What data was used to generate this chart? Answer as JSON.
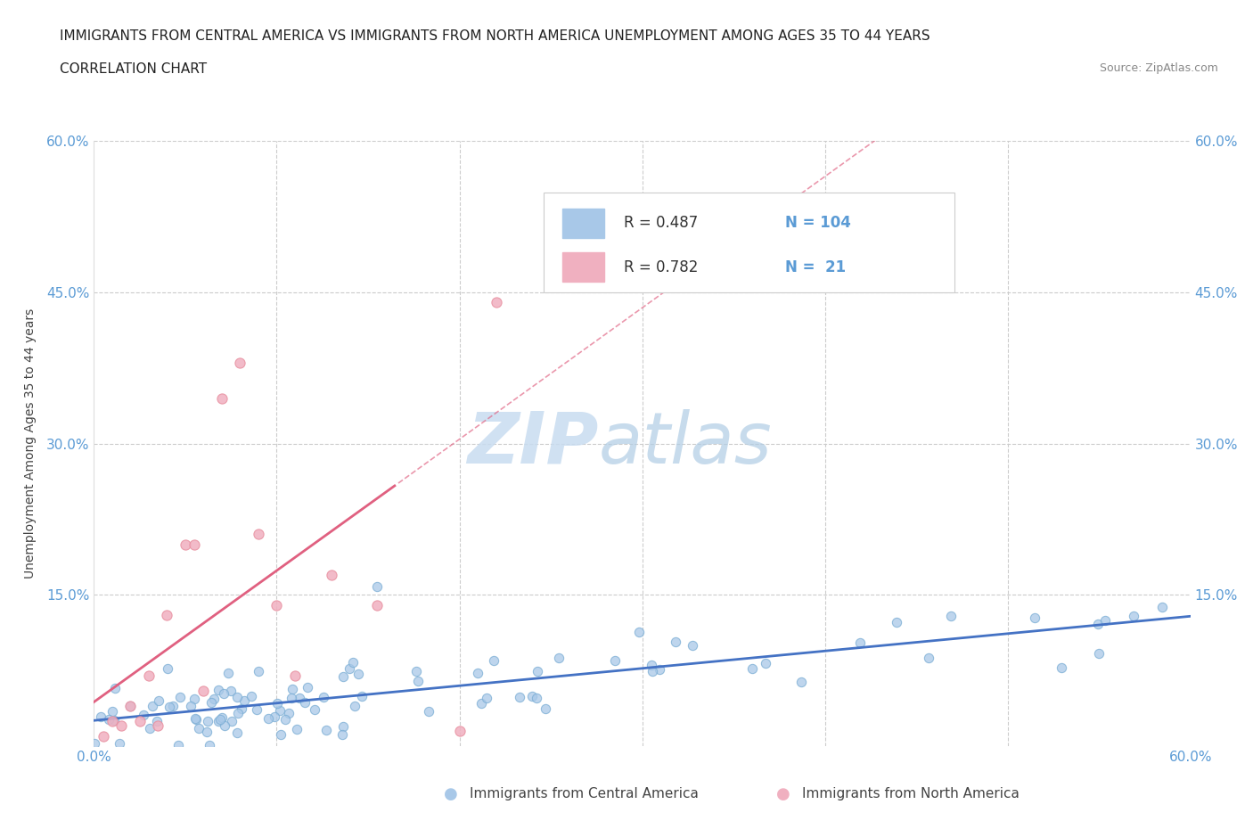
{
  "title_line1": "IMMIGRANTS FROM CENTRAL AMERICA VS IMMIGRANTS FROM NORTH AMERICA UNEMPLOYMENT AMONG AGES 35 TO 44 YEARS",
  "title_line2": "CORRELATION CHART",
  "source": "Source: ZipAtlas.com",
  "ylabel": "Unemployment Among Ages 35 to 44 years",
  "legend_label_1": "Immigrants from Central America",
  "legend_label_2": "Immigrants from North America",
  "r1": 0.487,
  "n1": 104,
  "r2": 0.782,
  "n2": 21,
  "color_blue_fill": "#A8C8E8",
  "color_blue_edge": "#7AADD4",
  "color_pink_fill": "#F0B0C0",
  "color_pink_edge": "#E890A0",
  "color_blue_line": "#4472C4",
  "color_pink_line": "#E06080",
  "color_grid": "#CCCCCC",
  "background_color": "#FFFFFF",
  "xlim": [
    0.0,
    0.6
  ],
  "ylim": [
    0.0,
    0.6
  ],
  "watermark_zip_color": "#C8DCF0",
  "watermark_atlas_color": "#B0CCE4"
}
